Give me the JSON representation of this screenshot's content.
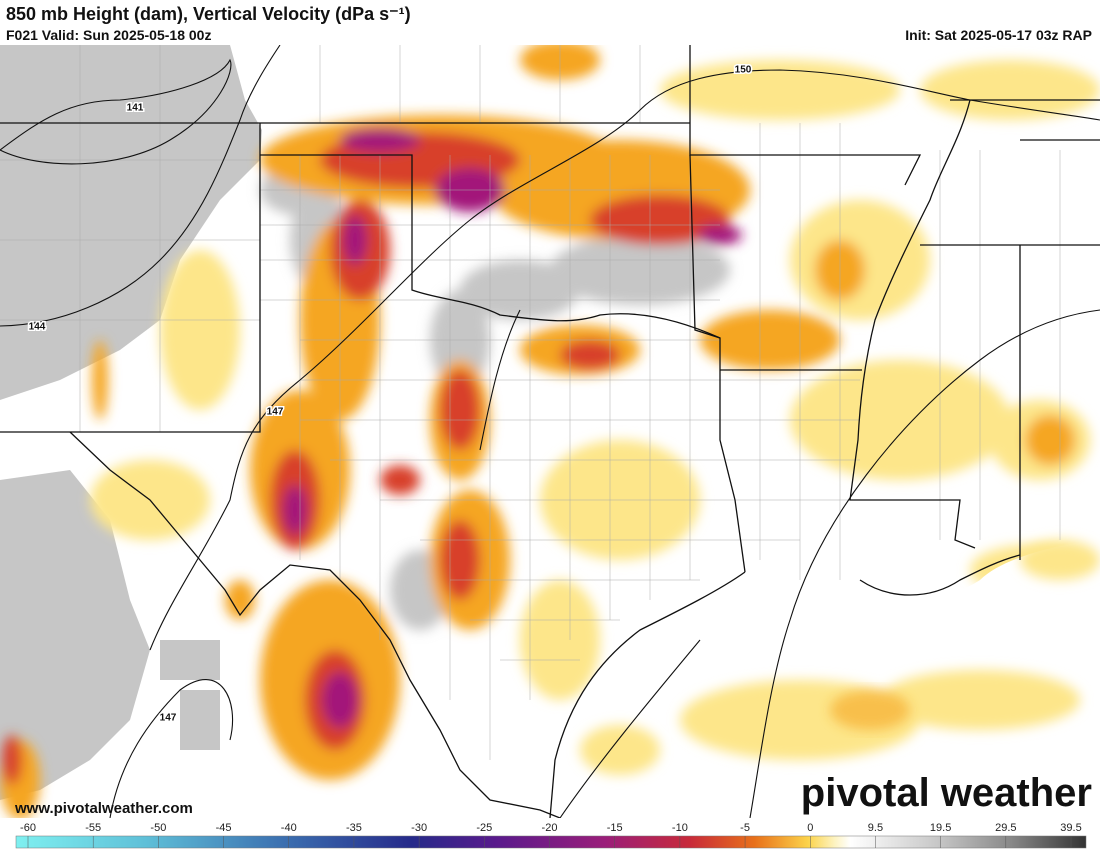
{
  "header": {
    "title": "850 mb Height (dam), Vertical Velocity (dPa s⁻¹)",
    "valid": "F021 Valid: Sun 2025-05-18 00z",
    "init": "Init: Sat 2025-05-17 03z RAP"
  },
  "map": {
    "contour_labels": [
      141,
      144,
      147,
      150,
      147
    ]
  },
  "colorbar": {
    "ticks": [
      -60,
      -55,
      -50,
      -45,
      -40,
      -35,
      -30,
      -25,
      -20,
      -15,
      -10,
      -5,
      0,
      9.5,
      19.5,
      29.5,
      39.5
    ]
  },
  "footer": {
    "website": "www.pivotalweather.com",
    "brand": "pivotal weather"
  }
}
